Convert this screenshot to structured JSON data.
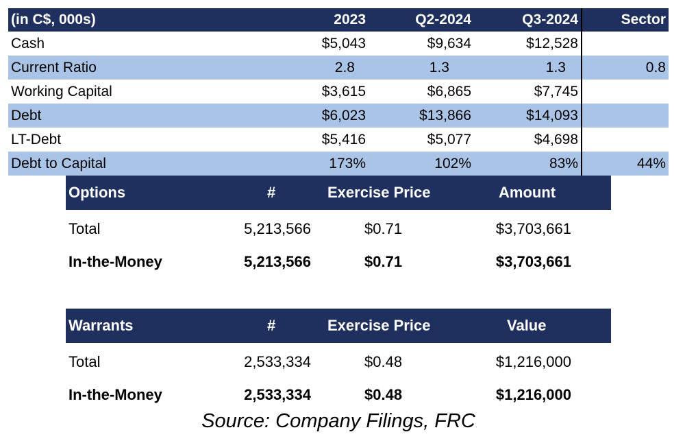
{
  "financials": {
    "headers": [
      "(in C$, 000s)",
      "2023",
      "Q2-2024",
      "Q3-2024",
      "Sector"
    ],
    "rows": [
      {
        "label": "Cash",
        "v2023": "$5,043",
        "q2": "$9,634",
        "q3": "$12,528",
        "sector": ""
      },
      {
        "label": "Current Ratio",
        "v2023": "2.8",
        "q2": "1.3",
        "q3": "1.3",
        "sector": "0.8"
      },
      {
        "label": "Working Capital",
        "v2023": "$3,615",
        "q2": "$6,865",
        "q3": "$7,745",
        "sector": ""
      },
      {
        "label": "Debt",
        "v2023": "$6,023",
        "q2": "$13,866",
        "q3": "$14,093",
        "sector": ""
      },
      {
        "label": "LT-Debt",
        "v2023": "$5,416",
        "q2": "$5,077",
        "q3": "$4,698",
        "sector": ""
      },
      {
        "label": "Debt to Capital",
        "v2023": "173%",
        "q2": "102%",
        "q3": "83%",
        "sector": "44%"
      }
    ]
  },
  "options": {
    "headers": [
      "Options",
      "#",
      "Exercise Price",
      "Amount"
    ],
    "rows": [
      {
        "label": "Total",
        "count": "5,213,566",
        "price": "$0.71",
        "amount": "$3,703,661"
      },
      {
        "label": "In-the-Money",
        "count": "5,213,566",
        "price": "$0.71",
        "amount": "$3,703,661"
      }
    ]
  },
  "warrants": {
    "headers": [
      "Warrants",
      "#",
      "Exercise Price",
      "Value"
    ],
    "rows": [
      {
        "label": "Total",
        "count": "2,533,334",
        "price": "$0.48",
        "amount": "$1,216,000"
      },
      {
        "label": "In-the-Money",
        "count": "2,533,334",
        "price": "$0.48",
        "amount": "$1,216,000"
      }
    ]
  },
  "source": "Source: Company Filings, FRC",
  "colors": {
    "header_bg": "#1f2f5e",
    "band": "#a9c4e6"
  }
}
